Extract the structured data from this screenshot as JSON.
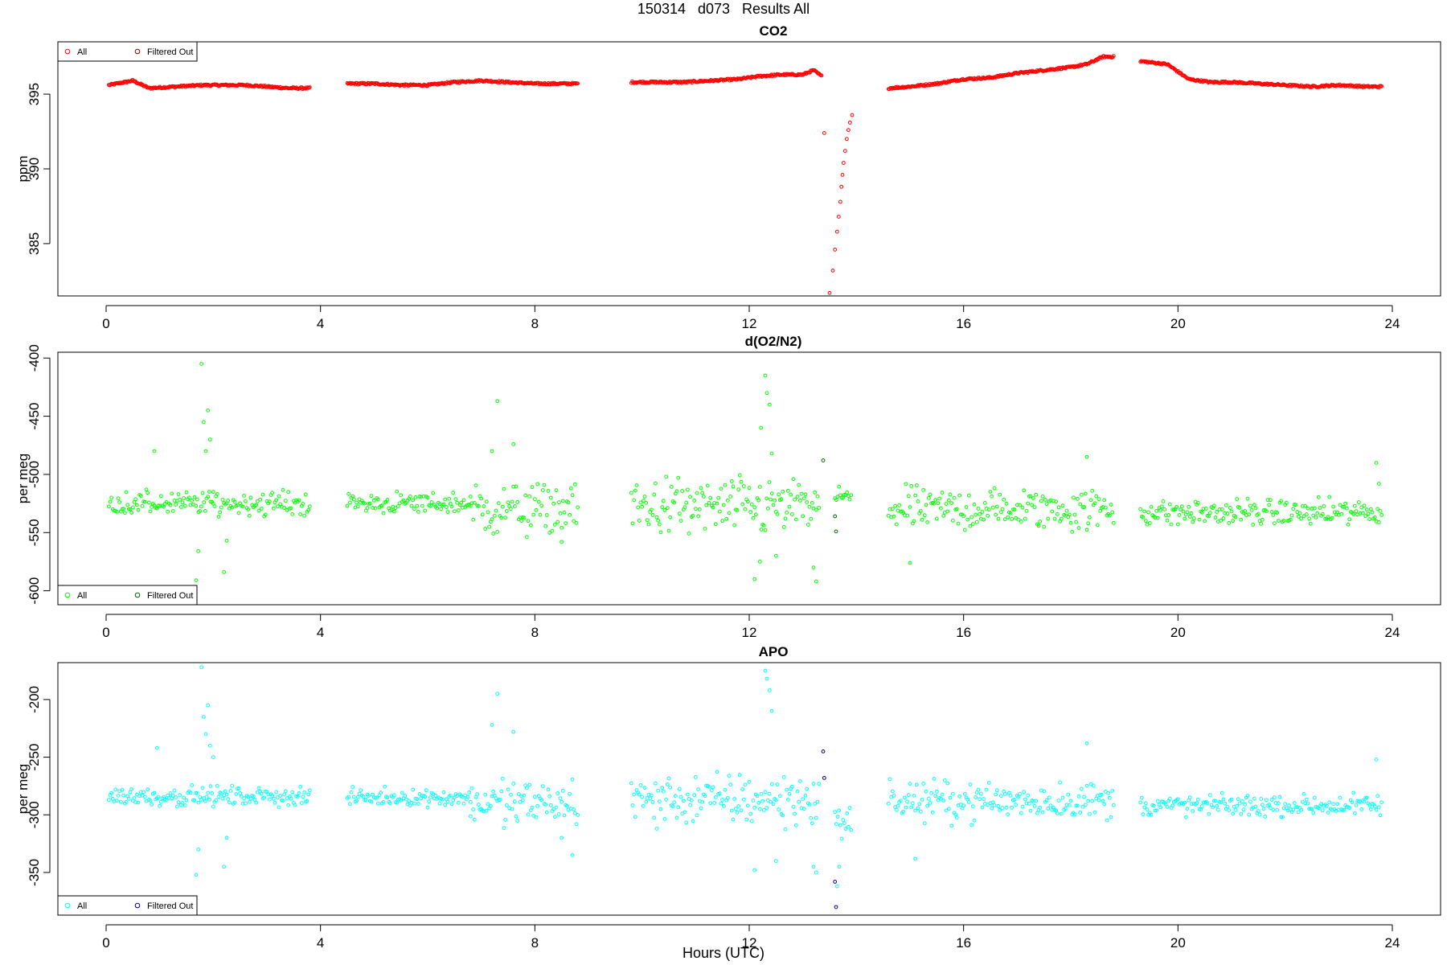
{
  "figure": {
    "title": "150314   d073   Results All",
    "xlabel": "Hours (UTC)"
  },
  "chart_data": [
    {
      "type": "scatter",
      "title": "CO2",
      "ylabel": "ppm",
      "xlim": [
        -0.9,
        24.9
      ],
      "ylim": [
        381.5,
        398.5
      ],
      "xticks": [
        0,
        4,
        8,
        12,
        16,
        20,
        24
      ],
      "yticks": [
        385,
        390,
        395
      ],
      "grid": false,
      "legend_position": "top-left",
      "legend": [
        "All",
        "Filtered Out"
      ],
      "colors": {
        "All": "#ff0000",
        "Filtered Out": "#8b0000"
      },
      "series": [
        {
          "name": "All",
          "segments": [
            {
              "x": [
                0.05,
                0.5,
                0.8,
                1.3,
                1.8,
                2.2,
                2.6,
                3.0,
                3.4,
                3.8
              ],
              "y": [
                395.6,
                395.9,
                395.4,
                395.5,
                395.6,
                395.6,
                395.6,
                395.5,
                395.4,
                395.4
              ]
            },
            {
              "x": [
                4.5,
                5.0,
                5.5,
                6.0,
                6.5,
                7.0,
                7.5,
                8.0,
                8.5,
                8.8
              ],
              "y": [
                395.7,
                395.7,
                395.6,
                395.6,
                395.8,
                395.9,
                395.8,
                395.7,
                395.7,
                395.7
              ]
            },
            {
              "x": [
                9.8,
                10.3,
                10.8,
                11.3,
                11.8,
                12.2,
                12.6,
                13.0,
                13.2,
                13.35
              ],
              "y": [
                395.8,
                395.8,
                395.8,
                395.9,
                396.0,
                396.2,
                396.3,
                396.3,
                396.6,
                396.2
              ]
            },
            {
              "x": [
                14.6,
                15.0,
                15.5,
                16.0,
                16.5,
                17.0,
                17.5,
                18.0,
                18.3,
                18.6,
                18.8
              ],
              "y": [
                395.4,
                395.5,
                395.7,
                396.0,
                396.1,
                396.4,
                396.6,
                396.8,
                397.0,
                397.5,
                397.5
              ]
            },
            {
              "x": [
                19.3,
                19.8,
                20.2,
                20.6,
                21.0,
                21.5,
                22.0,
                22.5,
                23.0,
                23.5,
                23.8
              ],
              "y": [
                397.2,
                397.0,
                396.0,
                395.8,
                395.8,
                395.7,
                395.6,
                395.5,
                395.6,
                395.5,
                395.5
              ]
            },
            {
              "x": [
                13.4,
                13.5,
                13.56,
                13.6,
                13.64,
                13.67,
                13.7,
                13.72,
                13.74,
                13.76,
                13.79,
                13.82,
                13.85,
                13.88,
                13.92
              ],
              "y": [
                392.4,
                381.7,
                383.2,
                384.6,
                385.8,
                386.8,
                387.8,
                388.8,
                389.6,
                390.4,
                391.2,
                392.0,
                392.6,
                393.1,
                393.6
              ]
            }
          ]
        },
        {
          "name": "Filtered Out",
          "x": [],
          "y": []
        }
      ]
    },
    {
      "type": "scatter",
      "title": "d(O2/N2)",
      "ylabel": "per meg",
      "xlim": [
        -0.9,
        24.9
      ],
      "ylim": [
        -612,
        -395
      ],
      "xticks": [
        0,
        4,
        8,
        12,
        16,
        20,
        24
      ],
      "yticks": [
        -600,
        -550,
        -500,
        -450,
        -400
      ],
      "grid": false,
      "legend_position": "bottom-left",
      "legend": [
        "All",
        "Filtered Out"
      ],
      "colors": {
        "All": "#00ff00",
        "Filtered Out": "#006400"
      },
      "series": [
        {
          "name": "All",
          "segments": [
            {
              "x": [
                0.05,
                3.8
              ],
              "center": -525,
              "spread": 10
            },
            {
              "x": [
                4.5,
                6.8
              ],
              "center": -525,
              "spread": 9
            },
            {
              "x": [
                6.8,
                8.8
              ],
              "center": -530,
              "spread": 22
            },
            {
              "x": [
                9.8,
                13.3
              ],
              "center": -528,
              "spread": 24
            },
            {
              "x": [
                13.6,
                13.9
              ],
              "center": -520,
              "spread": 10
            },
            {
              "x": [
                14.6,
                18.8
              ],
              "center": -530,
              "spread": 18
            },
            {
              "x": [
                19.3,
                23.8
              ],
              "center": -533,
              "spread": 11
            }
          ],
          "outliers": {
            "x": [
              1.68,
              1.72,
              1.78,
              1.82,
              1.86,
              1.9,
              1.94,
              2.0,
              2.2,
              2.25,
              0.9,
              7.3,
              7.2,
              7.6,
              8.5,
              12.1,
              12.3,
              12.33,
              12.38,
              12.42,
              12.22,
              12.5,
              12.2,
              13.25,
              13.2,
              15.0,
              18.3,
              23.7,
              23.75
            ],
            "y": [
              -591,
              -566,
              -405,
              -455,
              -480,
              -445,
              -470,
              -515,
              -584,
              -557,
              -480,
              -437,
              -480,
              -474,
              -558,
              -590,
              -415,
              -430,
              -440,
              -482,
              -460,
              -570,
              -575,
              -592,
              -580,
              -576,
              -485,
              -490,
              -508
            ]
          }
        },
        {
          "name": "Filtered Out",
          "x": [
            13.38,
            13.6,
            13.62
          ],
          "y": [
            -488,
            -536,
            -549
          ]
        }
      ]
    },
    {
      "type": "scatter",
      "title": "APO",
      "ylabel": "per meg",
      "xlim": [
        -0.9,
        24.9
      ],
      "ylim": [
        -387,
        -168
      ],
      "xticks": [
        0,
        4,
        8,
        12,
        16,
        20,
        24
      ],
      "yticks": [
        -350,
        -300,
        -250,
        -200
      ],
      "grid": false,
      "legend_position": "bottom-left",
      "legend": [
        "All",
        "Filtered Out"
      ],
      "colors": {
        "All": "#00ffff",
        "Filtered Out": "#00008b"
      },
      "series": [
        {
          "name": "All",
          "segments": [
            {
              "x": [
                0.05,
                3.8
              ],
              "center": -284,
              "spread": 8
            },
            {
              "x": [
                4.5,
                6.8
              ],
              "center": -285,
              "spread": 7
            },
            {
              "x": [
                6.8,
                8.8
              ],
              "center": -290,
              "spread": 20
            },
            {
              "x": [
                9.8,
                13.3
              ],
              "center": -287,
              "spread": 22
            },
            {
              "x": [
                13.6,
                13.9
              ],
              "center": -305,
              "spread": 15
            },
            {
              "x": [
                14.6,
                18.8
              ],
              "center": -288,
              "spread": 16
            },
            {
              "x": [
                19.3,
                23.8
              ],
              "center": -292,
              "spread": 9
            }
          ],
          "outliers": {
            "x": [
              1.68,
              1.72,
              1.78,
              1.82,
              1.86,
              1.9,
              1.94,
              2.0,
              2.2,
              2.25,
              0.95,
              7.3,
              7.2,
              7.6,
              8.5,
              8.7,
              12.1,
              12.3,
              12.33,
              12.38,
              12.42,
              12.5,
              13.25,
              13.2,
              15.1,
              18.3,
              23.7,
              13.68,
              13.64
            ],
            "y": [
              -352,
              -330,
              -172,
              -215,
              -230,
              -205,
              -240,
              -250,
              -345,
              -320,
              -242,
              -195,
              -222,
              -228,
              -320,
              -335,
              -348,
              -175,
              -182,
              -192,
              -210,
              -340,
              -350,
              -345,
              -338,
              -238,
              -252,
              -345,
              -362
            ]
          }
        },
        {
          "name": "Filtered Out",
          "x": [
            13.38,
            13.4,
            13.6,
            13.62
          ],
          "y": [
            -245,
            -268,
            -358,
            -380
          ]
        }
      ]
    }
  ]
}
